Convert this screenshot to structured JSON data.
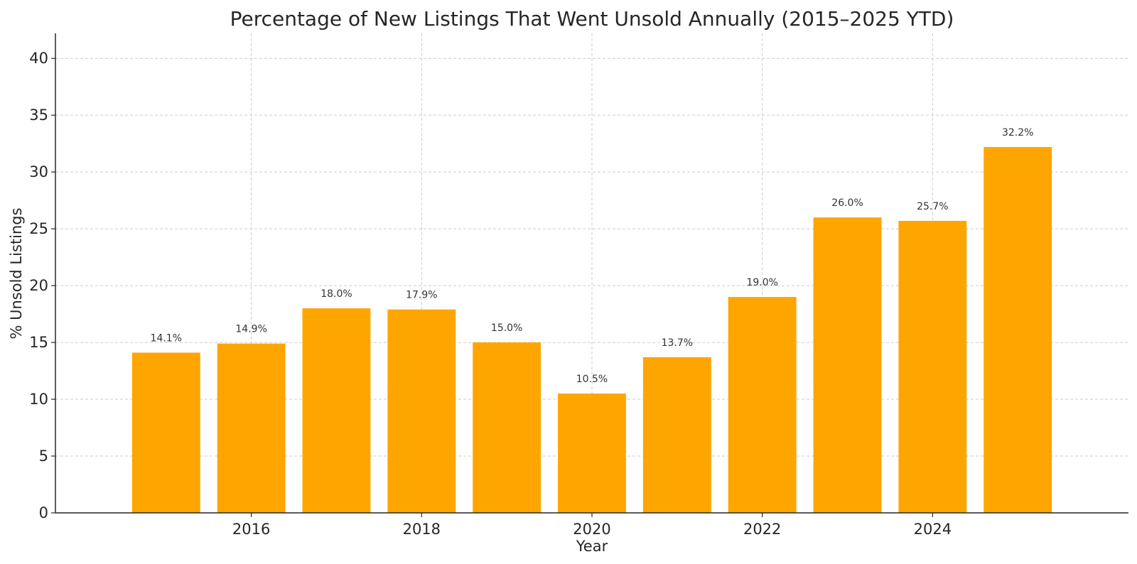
{
  "chart_data": {
    "type": "bar",
    "title": "Percentage of New Listings That Went Unsold Annually (2015–2025 YTD)",
    "xlabel": "Year",
    "ylabel": "% Unsold Listings",
    "categories": [
      2015,
      2016,
      2017,
      2018,
      2019,
      2020,
      2021,
      2022,
      2023,
      2024,
      2025
    ],
    "values": [
      14.1,
      14.9,
      18.0,
      17.9,
      15.0,
      10.5,
      13.7,
      19.0,
      26.0,
      25.7,
      32.2
    ],
    "data_labels": [
      "14.1%",
      "14.9%",
      "18.0%",
      "17.9%",
      "15.0%",
      "10.5%",
      "13.7%",
      "19.0%",
      "26.0%",
      "25.7%",
      "32.2%"
    ],
    "xticks": [
      2016,
      2018,
      2020,
      2022,
      2024
    ],
    "xtick_labels": [
      "2016",
      "2018",
      "2020",
      "2022",
      "2024"
    ],
    "yticks": [
      0,
      5,
      10,
      15,
      20,
      25,
      30,
      35,
      40
    ],
    "ytick_labels": [
      "0",
      "5",
      "10",
      "15",
      "20",
      "25",
      "30",
      "35",
      "40"
    ],
    "xlim": [
      2013.7,
      2026.3
    ],
    "ylim": [
      0,
      42.2
    ],
    "grid": true,
    "bar_color": "#FFA500"
  }
}
